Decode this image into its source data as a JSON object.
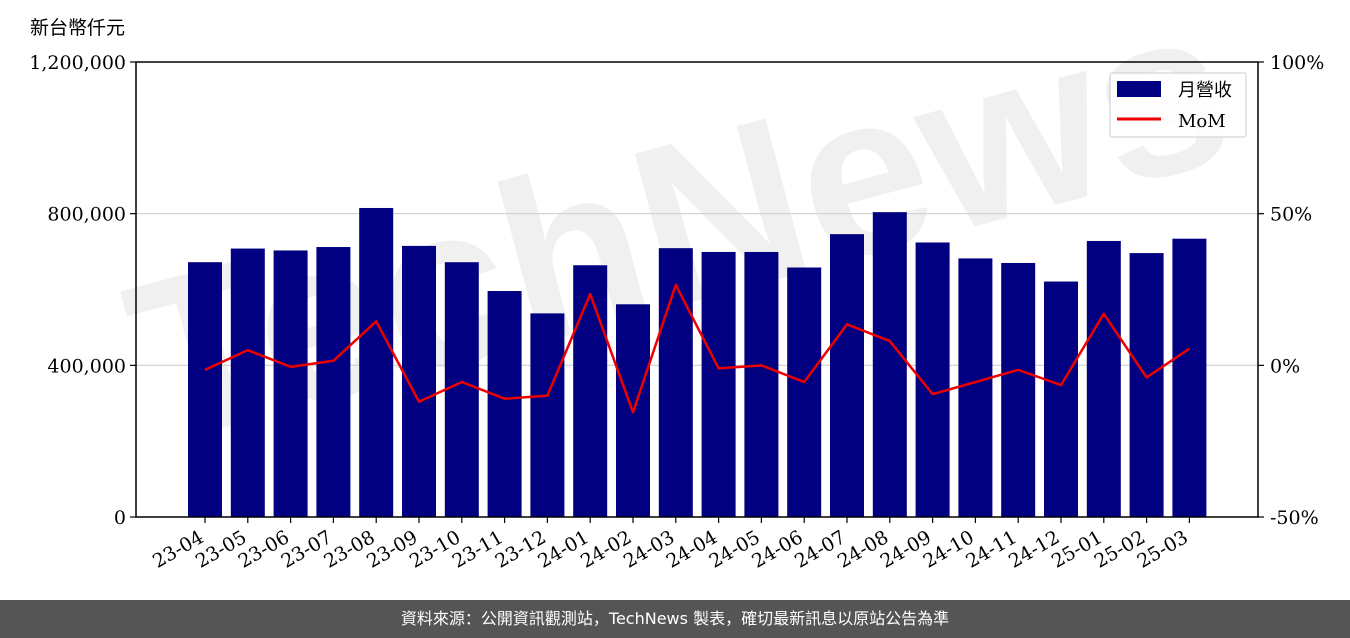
{
  "chart_data": {
    "type": "bar",
    "y_unit_label": "新台幣仟元",
    "categories": [
      "23-04",
      "23-05",
      "23-06",
      "23-07",
      "23-08",
      "23-09",
      "23-10",
      "23-11",
      "23-12",
      "24-01",
      "24-02",
      "24-03",
      "24-04",
      "24-05",
      "24-06",
      "24-07",
      "24-08",
      "24-09",
      "24-10",
      "24-11",
      "24-12",
      "25-01",
      "25-02",
      "25-03"
    ],
    "series": [
      {
        "name": "月營收",
        "axis": "left",
        "type": "bar",
        "color": "#000080",
        "values": [
          672000,
          708000,
          703000,
          712000,
          815000,
          715000,
          672000,
          596000,
          537000,
          664000,
          561000,
          709000,
          699000,
          699000,
          658000,
          746000,
          804000,
          724000,
          682000,
          670000,
          621000,
          728000,
          696000,
          734000
        ]
      },
      {
        "name": "MoM",
        "axis": "right",
        "type": "line",
        "color": "#ee0000",
        "values": [
          -1.5,
          5.0,
          -0.5,
          1.5,
          14.5,
          -12.0,
          -5.5,
          -11.0,
          -10.0,
          23.5,
          -15.5,
          26.5,
          -1.0,
          0.0,
          -5.5,
          13.5,
          8.0,
          -9.5,
          -5.5,
          -1.5,
          -6.5,
          17.0,
          -4.0,
          5.5
        ]
      }
    ],
    "y_left": {
      "ylim": [
        0,
        1200000
      ],
      "ticks": [
        "0",
        "400,000",
        "800,000",
        "1,200,000"
      ],
      "tick_values": [
        0,
        400000,
        800000,
        1200000
      ]
    },
    "y_right": {
      "ylim": [
        -50,
        100
      ],
      "ticks": [
        "-50%",
        "0%",
        "50%",
        "100%"
      ],
      "tick_values": [
        -50,
        0,
        50,
        100
      ]
    },
    "grid": "horizontal",
    "legend": "top-right"
  },
  "watermark": "TechNews",
  "footer": {
    "source": "資料來源：公開資訊觀測站，TechNews 製表，確切最新訊息以原站公告為準"
  }
}
